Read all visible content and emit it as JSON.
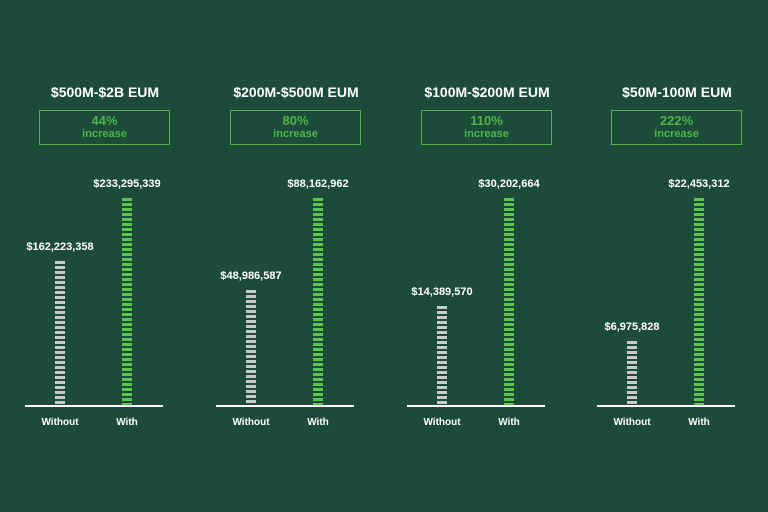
{
  "chart_data": [
    {
      "type": "bar",
      "title": "$500M-$2B EUM",
      "badge": {
        "pct": "44%",
        "word": "increase"
      },
      "categories": [
        "Without",
        "With"
      ],
      "values": [
        162223358,
        233295339
      ],
      "value_labels": [
        "$162,223,358",
        "$233,295,339"
      ],
      "colors": [
        "#c9c9c9",
        "#5cc44f"
      ]
    },
    {
      "type": "bar",
      "title": "$200M-$500M EUM",
      "badge": {
        "pct": "80%",
        "word": "increase"
      },
      "categories": [
        "Without",
        "With"
      ],
      "values": [
        48986587,
        88162962
      ],
      "value_labels": [
        "$48,986,587",
        "$88,162,962"
      ],
      "colors": [
        "#c9c9c9",
        "#5cc44f"
      ]
    },
    {
      "type": "bar",
      "title": "$100M-$200M EUM",
      "badge": {
        "pct": "110%",
        "word": "increase"
      },
      "categories": [
        "Without",
        "With"
      ],
      "values": [
        14389570,
        30202664
      ],
      "value_labels": [
        "$14,389,570",
        "$30,202,664"
      ],
      "colors": [
        "#c9c9c9",
        "#5cc44f"
      ]
    },
    {
      "type": "bar",
      "title": "$50M-100M EUM",
      "badge": {
        "pct": "222%",
        "word": "increase"
      },
      "categories": [
        "Without",
        "With"
      ],
      "values": [
        6975828,
        22453312
      ],
      "value_labels": [
        "$6,975,828",
        "$22,453,312"
      ],
      "colors": [
        "#c9c9c9",
        "#5cc44f"
      ]
    }
  ],
  "colors": {
    "background": "#1d4b3a",
    "accent": "#4cb648",
    "bar_without": "#c9c9c9",
    "bar_with": "#5cc44f"
  }
}
